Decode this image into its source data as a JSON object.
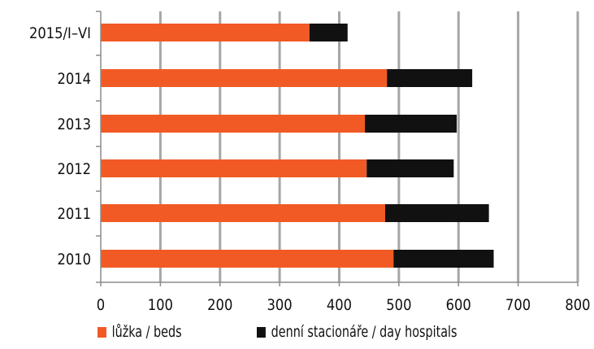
{
  "chart_data": {
    "type": "bar",
    "orientation": "horizontal",
    "stacked": true,
    "categories": [
      "2015/I–VI",
      "2014",
      "2013",
      "2012",
      "2011",
      "2010"
    ],
    "series": [
      {
        "name": "lůžka / beds",
        "color": "#F15A24",
        "values": [
          350,
          480,
          443,
          446,
          477,
          491
        ]
      },
      {
        "name": "denní stacionáře / day hospitals",
        "color": "#111111",
        "values": [
          64,
          143,
          154,
          146,
          174,
          168
        ]
      }
    ],
    "x_ticks": [
      "0",
      "100",
      "200",
      "300",
      "400",
      "500",
      "600",
      "700",
      "800"
    ],
    "xlim": [
      0,
      800
    ],
    "grid": true,
    "legend_position": "bottom"
  }
}
